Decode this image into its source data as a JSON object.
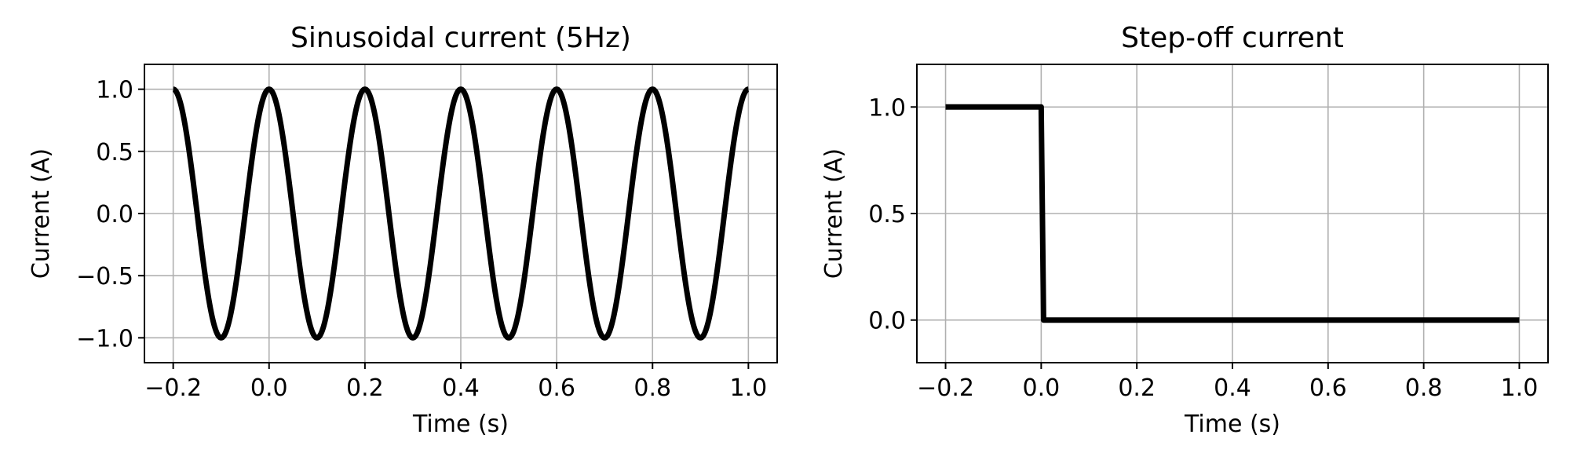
{
  "chart_data": [
    {
      "type": "line",
      "title": "Sinusoidal current (5Hz)",
      "xlabel": "Time (s)",
      "ylabel": "Current (A)",
      "xlim": [
        -0.26,
        1.06
      ],
      "ylim": [
        -1.2,
        1.2
      ],
      "xticks": [
        -0.2,
        0.0,
        0.2,
        0.4,
        0.6,
        0.8,
        1.0
      ],
      "xtick_labels": [
        "−0.2",
        "0.0",
        "0.2",
        "0.4",
        "0.6",
        "0.8",
        "1.0"
      ],
      "yticks": [
        -1.0,
        -0.5,
        0.0,
        0.5,
        1.0
      ],
      "ytick_labels": [
        "−1.0",
        "−0.5",
        "0.0",
        "0.5",
        "1.0"
      ],
      "grid": true,
      "series": [
        {
          "function": "cos(2*pi*5*t)",
          "frequency_hz": 5,
          "amplitude": 1.0,
          "x_range": [
            -0.2,
            1.0
          ],
          "color": "#000000"
        }
      ]
    },
    {
      "type": "line",
      "title": "Step-off current",
      "xlabel": "Time (s)",
      "ylabel": "Current (A)",
      "xlim": [
        -0.26,
        1.06
      ],
      "ylim": [
        -0.2,
        1.2
      ],
      "xticks": [
        -0.2,
        0.0,
        0.2,
        0.4,
        0.6,
        0.8,
        1.0
      ],
      "xtick_labels": [
        "−0.2",
        "0.0",
        "0.2",
        "0.4",
        "0.6",
        "0.8",
        "1.0"
      ],
      "yticks": [
        0.0,
        0.5,
        1.0
      ],
      "ytick_labels": [
        "0.0",
        "0.5",
        "1.0"
      ],
      "grid": true,
      "series": [
        {
          "x": [
            -0.2,
            0.0,
            0.005,
            1.0
          ],
          "y": [
            1.0,
            1.0,
            0.0,
            0.0
          ],
          "color": "#000000"
        }
      ]
    }
  ]
}
